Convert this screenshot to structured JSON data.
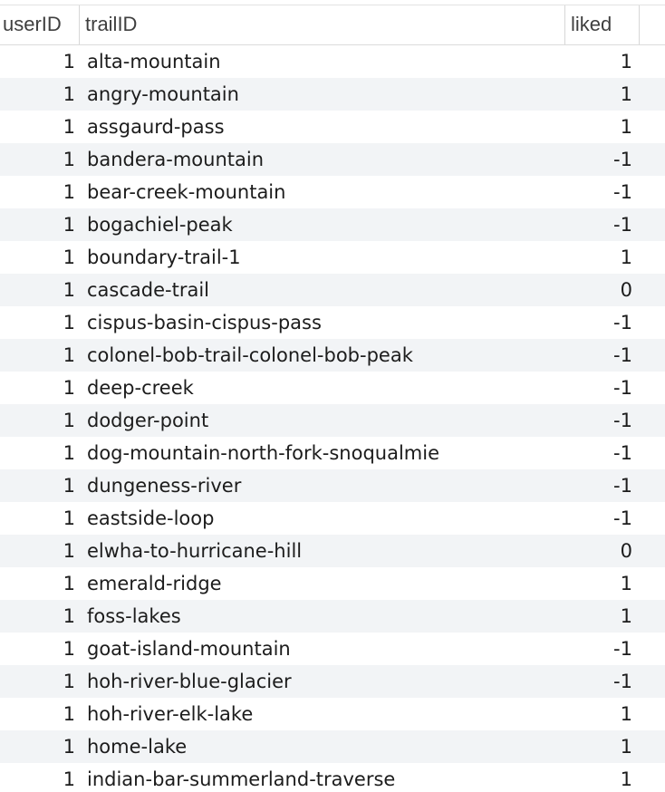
{
  "columns": {
    "userID": "userID",
    "trailID": "trailID",
    "liked": "liked"
  },
  "rows": [
    {
      "userID": "1",
      "trailID": "alta-mountain",
      "liked": "1"
    },
    {
      "userID": "1",
      "trailID": "angry-mountain",
      "liked": "1"
    },
    {
      "userID": "1",
      "trailID": "assgaurd-pass",
      "liked": "1"
    },
    {
      "userID": "1",
      "trailID": "bandera-mountain",
      "liked": "-1"
    },
    {
      "userID": "1",
      "trailID": "bear-creek-mountain",
      "liked": "-1"
    },
    {
      "userID": "1",
      "trailID": "bogachiel-peak",
      "liked": "-1"
    },
    {
      "userID": "1",
      "trailID": "boundary-trail-1",
      "liked": "1"
    },
    {
      "userID": "1",
      "trailID": "cascade-trail",
      "liked": "0"
    },
    {
      "userID": "1",
      "trailID": "cispus-basin-cispus-pass",
      "liked": "-1"
    },
    {
      "userID": "1",
      "trailID": "colonel-bob-trail-colonel-bob-peak",
      "liked": "-1"
    },
    {
      "userID": "1",
      "trailID": "deep-creek",
      "liked": "-1"
    },
    {
      "userID": "1",
      "trailID": "dodger-point",
      "liked": "-1"
    },
    {
      "userID": "1",
      "trailID": "dog-mountain-north-fork-snoqualmie",
      "liked": "-1"
    },
    {
      "userID": "1",
      "trailID": "dungeness-river",
      "liked": "-1"
    },
    {
      "userID": "1",
      "trailID": "eastside-loop",
      "liked": "-1"
    },
    {
      "userID": "1",
      "trailID": "elwha-to-hurricane-hill",
      "liked": "0"
    },
    {
      "userID": "1",
      "trailID": "emerald-ridge",
      "liked": "1"
    },
    {
      "userID": "1",
      "trailID": "foss-lakes",
      "liked": "1"
    },
    {
      "userID": "1",
      "trailID": "goat-island-mountain",
      "liked": "-1"
    },
    {
      "userID": "1",
      "trailID": "hoh-river-blue-glacier",
      "liked": "-1"
    },
    {
      "userID": "1",
      "trailID": "hoh-river-elk-lake",
      "liked": "1"
    },
    {
      "userID": "1",
      "trailID": "home-lake",
      "liked": "1"
    },
    {
      "userID": "1",
      "trailID": "indian-bar-summerland-traverse",
      "liked": "1"
    }
  ]
}
